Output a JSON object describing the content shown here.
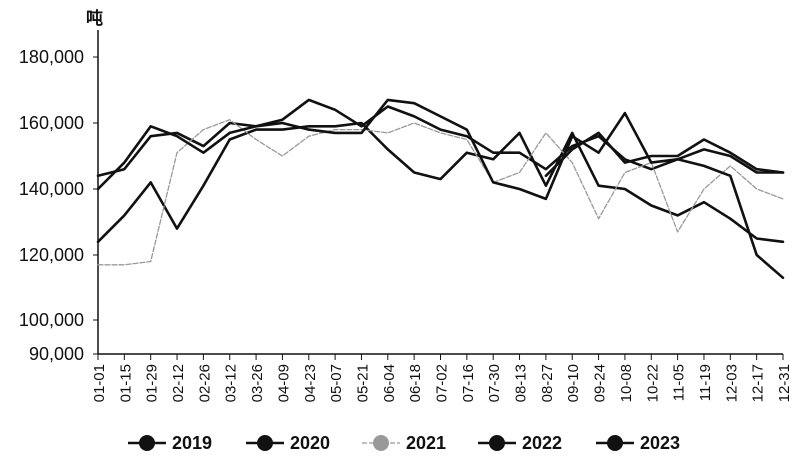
{
  "chart_data": {
    "type": "line",
    "title": "",
    "unit_label": "吨",
    "xlabel": "",
    "ylabel": "",
    "ylim": [
      90000,
      185000
    ],
    "y_ticks": [
      90000,
      100000,
      120000,
      140000,
      160000,
      180000
    ],
    "y_tick_labels": [
      "90,000",
      "100,000",
      "120,000",
      "140,000",
      "160,000",
      "180,000"
    ],
    "grid": false,
    "legend_position": "bottom",
    "categories": [
      "01-01",
      "01-15",
      "01-29",
      "02-12",
      "02-26",
      "03-12",
      "03-26",
      "04-09",
      "04-23",
      "05-07",
      "05-21",
      "06-04",
      "06-18",
      "07-02",
      "07-16",
      "07-30",
      "08-13",
      "08-27",
      "09-10",
      "09-24",
      "10-08",
      "10-22",
      "11-05",
      "11-19",
      "12-03",
      "12-17",
      "12-31"
    ],
    "series": [
      {
        "name": "2019",
        "color": "#111111",
        "dashed": false,
        "values": [
          144000,
          146000,
          156000,
          157000,
          153000,
          160000,
          159000,
          161000,
          167000,
          164000,
          159000,
          165000,
          162000,
          158000,
          156000,
          151000,
          151000,
          146000,
          153000,
          156000,
          149000,
          146000,
          149000,
          152000,
          150000,
          145000,
          145000
        ]
      },
      {
        "name": "2020",
        "color": "#111111",
        "dashed": false,
        "values": [
          124000,
          132000,
          142000,
          128000,
          141000,
          155000,
          158000,
          158000,
          159000,
          159000,
          160000,
          152000,
          145000,
          143000,
          151000,
          149000,
          157000,
          141000,
          157000,
          141000,
          140000,
          135000,
          132000,
          136000,
          131000,
          125000,
          124000
        ]
      },
      {
        "name": "2021",
        "color": "#999999",
        "dashed": true,
        "values": [
          117000,
          117000,
          118000,
          151000,
          158000,
          161000,
          155000,
          150000,
          156000,
          158000,
          158000,
          157000,
          160000,
          157000,
          155000,
          142000,
          145000,
          157000,
          148000,
          131000,
          145000,
          148000,
          127000,
          140000,
          147000,
          140000,
          137000
        ]
      },
      {
        "name": "2022",
        "color": "#111111",
        "dashed": false,
        "values": [
          140000,
          148000,
          159000,
          156000,
          151000,
          157000,
          159000,
          160000,
          158000,
          157000,
          157000,
          167000,
          166000,
          162000,
          158000,
          142000,
          140000,
          137000,
          156000,
          151000,
          163000,
          148000,
          149000,
          147000,
          144000,
          120000,
          113000
        ]
      },
      {
        "name": "2023",
        "color": "#111111",
        "dashed": false,
        "values": [
          null,
          null,
          null,
          null,
          null,
          null,
          null,
          null,
          null,
          null,
          null,
          null,
          null,
          null,
          null,
          null,
          null,
          144000,
          152000,
          157000,
          148000,
          150000,
          150000,
          155000,
          151000,
          146000,
          145000
        ]
      }
    ]
  }
}
